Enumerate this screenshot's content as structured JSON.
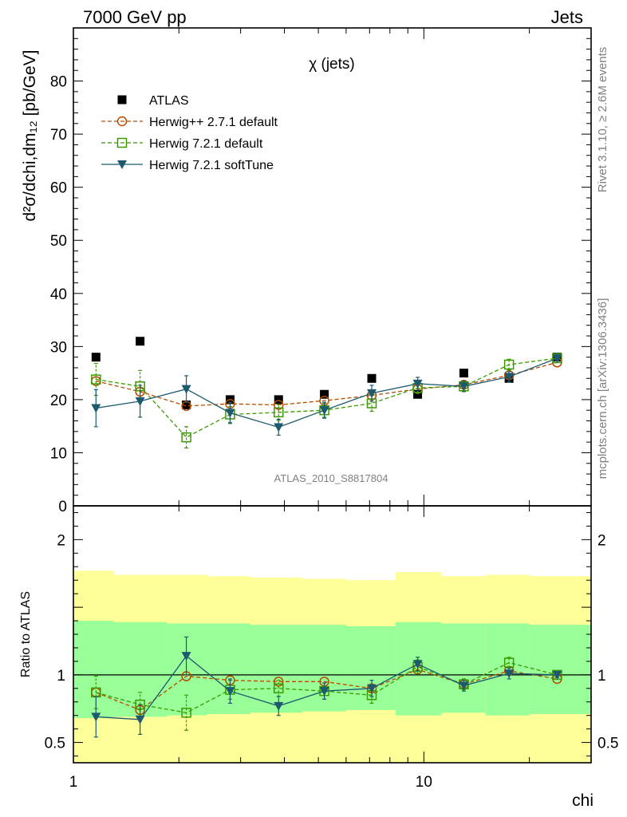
{
  "header": {
    "left": "7000 GeV pp",
    "right": "Jets"
  },
  "side_labels": {
    "rivet": "Rivet 3.1.10, ≥ 2.6M events",
    "mcplots": "mcplots.cern.ch [arXiv:1306.3436]"
  },
  "chart_data": [
    {
      "type": "scatter",
      "title": "χ (jets)",
      "analysis_tag": "ATLAS_2010_S8817804",
      "ylabel": "d²σ/dchi,dm₁₂ [pb/GeV]",
      "xscale": "log",
      "xlim": [
        1,
        30
      ],
      "ylim": [
        0,
        90
      ],
      "yticks": [
        0,
        10,
        20,
        30,
        40,
        50,
        60,
        70,
        80
      ],
      "legend_position": "top-left",
      "x": [
        1.16,
        1.55,
        2.1,
        2.8,
        3.85,
        5.2,
        7.1,
        9.6,
        13,
        17.5,
        24
      ],
      "series": [
        {
          "name": "ATLAS",
          "color": "#000000",
          "marker": "square-filled",
          "line": "none",
          "values": [
            28,
            31,
            19,
            20,
            20,
            21,
            24,
            21,
            25,
            24,
            28
          ]
        },
        {
          "name": "Herwig++ 2.7.1 default",
          "color": "#b34c00",
          "marker": "circle-open",
          "line": "dashed",
          "values": [
            23.5,
            21.5,
            18.8,
            19.2,
            19,
            19.8,
            20.8,
            22,
            22.8,
            24.6,
            27
          ]
        },
        {
          "name": "Herwig 7.2.1 default",
          "color": "#3a9a00",
          "marker": "square-open",
          "line": "dashed",
          "values": [
            23.8,
            22.5,
            12.9,
            17.2,
            17.6,
            18,
            19.3,
            22.2,
            22.5,
            26.6,
            27.8
          ],
          "err": [
            3,
            3,
            2,
            1.5,
            1.5,
            1.3,
            1.5,
            1,
            1,
            1,
            0.5
          ]
        },
        {
          "name": "Herwig 7.2.1 softTune",
          "color": "#1d5a6e",
          "marker": "triangle-down-filled",
          "line": "solid",
          "values": [
            18.4,
            19.7,
            22,
            17.5,
            14.8,
            18,
            21.2,
            23,
            22.5,
            24.3,
            27.8
          ],
          "err": [
            3.5,
            3,
            2.5,
            2,
            1.5,
            1.5,
            1.5,
            1.2,
            1,
            1,
            0.5
          ]
        }
      ]
    },
    {
      "type": "line",
      "ylabel": "Ratio to ATLAS",
      "xlabel": "chi",
      "xscale": "log",
      "xlim": [
        1,
        30
      ],
      "ylim": [
        0.35,
        2.25
      ],
      "yticks": [
        "0.5",
        "1",
        "2"
      ],
      "xticks": [
        "1",
        "10"
      ],
      "x_edges": [
        1,
        1.3,
        1.85,
        2.4,
        3.2,
        4.5,
        6,
        8.3,
        11.2,
        15,
        20,
        30
      ],
      "band_outer": [
        [
          0.33,
          1.77
        ],
        [
          0.33,
          1.74
        ],
        [
          0.33,
          1.74
        ],
        [
          0.33,
          1.73
        ],
        [
          0.33,
          1.72
        ],
        [
          0.33,
          1.71
        ],
        [
          0.33,
          1.7
        ],
        [
          0.33,
          1.76
        ],
        [
          0.33,
          1.73
        ],
        [
          0.33,
          1.74
        ],
        [
          0.33,
          1.73
        ]
      ],
      "band_inner": [
        [
          0.68,
          1.4
        ],
        [
          0.69,
          1.39
        ],
        [
          0.7,
          1.38
        ],
        [
          0.71,
          1.38
        ],
        [
          0.72,
          1.37
        ],
        [
          0.73,
          1.37
        ],
        [
          0.74,
          1.36
        ],
        [
          0.7,
          1.39
        ],
        [
          0.72,
          1.38
        ],
        [
          0.7,
          1.38
        ],
        [
          0.71,
          1.37
        ]
      ],
      "band_outer_color": "#ffff99",
      "band_inner_color": "#99ff99",
      "x": [
        1.16,
        1.55,
        2.1,
        2.8,
        3.85,
        5.2,
        7.1,
        9.6,
        13,
        17.5,
        24
      ],
      "series": [
        {
          "name": "Herwig++ 2.7.1 default",
          "color": "#b34c00",
          "marker": "circle-open",
          "line": "dashed",
          "values": [
            0.87,
            0.74,
            0.99,
            0.96,
            0.95,
            0.95,
            0.9,
            1.04,
            0.93,
            1.03,
            0.97
          ]
        },
        {
          "name": "Herwig 7.2.1 default",
          "color": "#3a9a00",
          "marker": "square-open",
          "line": "dashed",
          "values": [
            0.87,
            0.78,
            0.72,
            0.89,
            0.9,
            0.88,
            0.85,
            1.06,
            0.93,
            1.09,
            1.0
          ],
          "err": [
            0.12,
            0.09,
            0.13,
            0.07,
            0.06,
            0.06,
            0.06,
            0.05,
            0.04,
            0.04,
            0.02
          ]
        },
        {
          "name": "Herwig 7.2.1 softTune",
          "color": "#1d5a6e",
          "marker": "triangle-down-filled",
          "line": "solid",
          "values": [
            0.69,
            0.67,
            1.14,
            0.88,
            0.77,
            0.88,
            0.9,
            1.08,
            0.92,
            1.01,
            1.0
          ],
          "err": [
            0.15,
            0.11,
            0.14,
            0.09,
            0.07,
            0.06,
            0.06,
            0.05,
            0.04,
            0.04,
            0.02
          ]
        }
      ]
    }
  ]
}
